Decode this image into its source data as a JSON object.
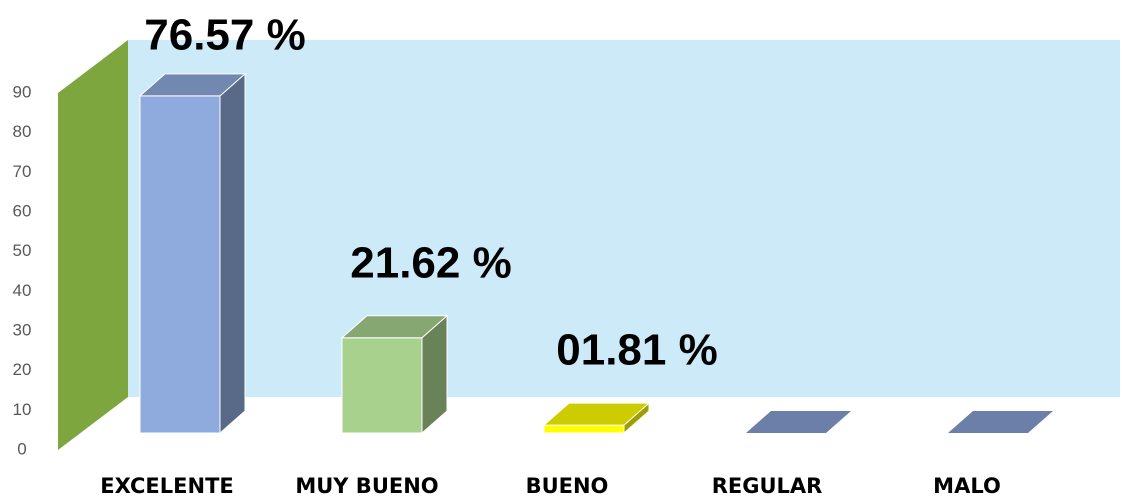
{
  "chart_data": {
    "type": "bar3d",
    "categories": [
      "EXCELENTE",
      "MUY BUENO",
      "BUENO",
      "REGULAR",
      "MALO"
    ],
    "values": [
      85,
      24,
      2,
      0,
      0
    ],
    "colors": [
      "#8faadc",
      "#a9d18e",
      "#ffff00",
      "#8faadc",
      "#8faadc"
    ],
    "annotations": [
      "76.57 %",
      "21.62 %",
      "01.81 %"
    ],
    "ylim": [
      0,
      90
    ],
    "yticks": [
      0,
      10,
      20,
      30,
      40,
      50,
      60,
      70,
      80,
      90
    ],
    "wall_color": "#cdeaf9",
    "side_wall_color": "#7ea63f"
  }
}
